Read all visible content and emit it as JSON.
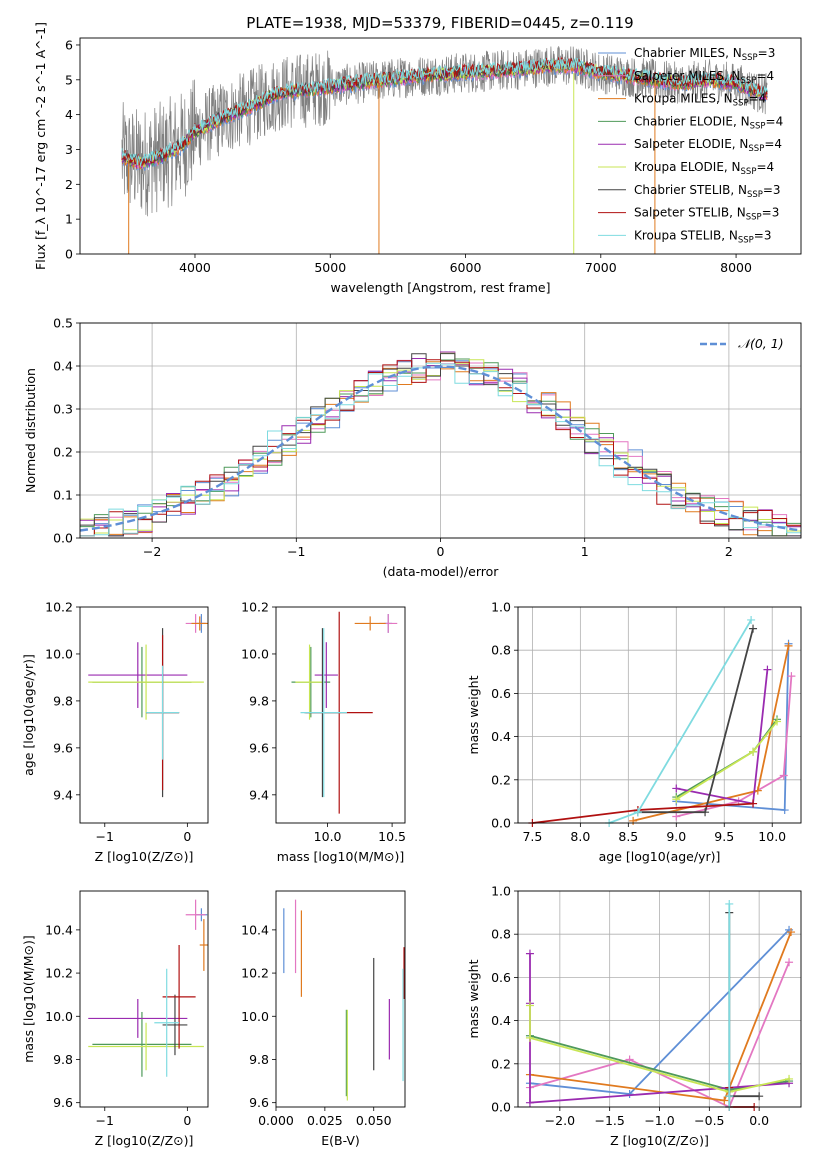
{
  "title": "PLATE=1938, MJD=53379, FIBERID=0445, z=0.119",
  "colors": {
    "Chabrier MILES": "#5f8fd6",
    "Salpeter MILES": "#e377c2",
    "Kroupa MILES": "#e07a1f",
    "Chabrier ELODIE": "#4f9a5a",
    "Salpeter ELODIE": "#9a2bb0",
    "Kroupa ELODIE": "#c8e655",
    "Chabrier STELIB": "#444444",
    "Salpeter STELIB": "#b01010",
    "Kroupa STELIB": "#7fdbe0"
  },
  "chart_data": [
    {
      "type": "line",
      "name": "spectrum",
      "xlabel": "wavelength [Angstrom, rest frame]",
      "ylabel": "Flux [f_λ 10^-17 erg cm^-2 s^-1 A^-1]",
      "xlim": [
        3150,
        8480
      ],
      "ylim": [
        0,
        6.2
      ],
      "xticks": [
        "4000",
        "5000",
        "6000",
        "7000",
        "8000"
      ],
      "yticks": [
        "0",
        "1",
        "2",
        "3",
        "4",
        "5",
        "6"
      ],
      "legend_position": "top-right",
      "legend": [
        {
          "name": "Chabrier MILES",
          "nssp": "3"
        },
        {
          "name": "Salpeter MILES",
          "nssp": "4"
        },
        {
          "name": "Kroupa MILES",
          "nssp": "4"
        },
        {
          "name": "Chabrier ELODIE",
          "nssp": "4"
        },
        {
          "name": "Salpeter ELODIE",
          "nssp": "4"
        },
        {
          "name": "Kroupa ELODIE",
          "nssp": "4"
        },
        {
          "name": "Chabrier STELIB",
          "nssp": "3"
        },
        {
          "name": "Salpeter STELIB",
          "nssp": "3"
        },
        {
          "name": "Kroupa STELIB",
          "nssp": "3"
        }
      ],
      "model_continuum": [
        [
          3450,
          2.8
        ],
        [
          3600,
          2.6
        ],
        [
          3750,
          2.8
        ],
        [
          3900,
          3.1
        ],
        [
          4000,
          3.5
        ],
        [
          4200,
          3.9
        ],
        [
          4400,
          4.2
        ],
        [
          4600,
          4.6
        ],
        [
          4800,
          4.7
        ],
        [
          5000,
          4.8
        ],
        [
          5200,
          4.9
        ],
        [
          5400,
          5.0
        ],
        [
          5600,
          5.1
        ],
        [
          5800,
          5.15
        ],
        [
          6000,
          5.2
        ],
        [
          6200,
          5.25
        ],
        [
          6400,
          5.3
        ],
        [
          6600,
          5.4
        ],
        [
          6800,
          5.4
        ],
        [
          7000,
          5.2
        ],
        [
          7200,
          5.1
        ],
        [
          7400,
          5.0
        ],
        [
          7600,
          4.9
        ],
        [
          7800,
          5.0
        ],
        [
          8000,
          4.9
        ],
        [
          8200,
          4.6
        ]
      ],
      "data_range": [
        3460,
        8230
      ]
    },
    {
      "type": "line",
      "name": "residuals",
      "xlabel": "(data-model)/error",
      "ylabel": "Normed distribution",
      "xlim": [
        -2.5,
        2.5
      ],
      "ylim": [
        0,
        0.5
      ],
      "grid": true,
      "xticks": [
        "−2",
        "−1",
        "0",
        "1",
        "2"
      ],
      "yticks": [
        "0.0",
        "0.1",
        "0.2",
        "0.3",
        "0.4",
        "0.5"
      ],
      "legend": "𝒩(0, 1)",
      "legend_position": "top-right",
      "histogram_bin_width": 0.1
    },
    {
      "type": "scatter",
      "name": "age_vs_Z",
      "xlabel": "Z [log10(Z/Z⊙)]",
      "ylabel": "age  [log10(age/yr)]",
      "xlim": [
        -1.3,
        0.25
      ],
      "ylim": [
        9.28,
        10.2
      ],
      "xticks": [
        "−1",
        "0"
      ],
      "yticks": [
        "9.4",
        "9.6",
        "9.8",
        "10.0",
        "10.2"
      ],
      "points": [
        {
          "model": "Chabrier MILES",
          "x": 0.17,
          "xerr": 0.06,
          "y": 10.13,
          "yerr": 0.04
        },
        {
          "model": "Salpeter MILES",
          "x": 0.1,
          "xerr": 0.12,
          "y": 10.13,
          "yerr": 0.04
        },
        {
          "model": "Kroupa MILES",
          "x": 0.15,
          "xerr": 0.1,
          "y": 10.13,
          "yerr": 0.03
        },
        {
          "model": "Chabrier ELODIE",
          "x": -0.55,
          "xerr": 0.6,
          "y": 9.88,
          "yerr": 0.15
        },
        {
          "model": "Salpeter ELODIE",
          "x": -0.6,
          "xerr": 0.6,
          "y": 9.91,
          "yerr": 0.14
        },
        {
          "model": "Kroupa ELODIE",
          "x": -0.5,
          "xerr": 0.7,
          "y": 9.88,
          "yerr": 0.16
        },
        {
          "model": "Chabrier STELIB",
          "x": -0.3,
          "xerr": 0.2,
          "y": 9.75,
          "yerr": 0.36
        },
        {
          "model": "Salpeter STELIB",
          "x": -0.3,
          "xerr": 0.2,
          "y": 9.75,
          "yerr": 0.33
        },
        {
          "model": "Kroupa STELIB",
          "x": -0.3,
          "xerr": 0.2,
          "y": 9.75,
          "yerr": 0.2
        }
      ]
    },
    {
      "type": "scatter",
      "name": "age_vs_mass",
      "xlabel": "mass [log10(M/M⊙)]",
      "ylabel": "",
      "xlim": [
        9.6,
        10.6
      ],
      "ylim": [
        9.28,
        10.2
      ],
      "xticks": [
        "10.0",
        "10.5"
      ],
      "yticks": [
        "9.4",
        "9.6",
        "9.8",
        "10.0",
        "10.2"
      ],
      "points": [
        {
          "model": "Chabrier MILES",
          "x": 10.47,
          "xerr": 0.03,
          "y": 10.13,
          "yerr": 0.04
        },
        {
          "model": "Salpeter MILES",
          "x": 10.47,
          "xerr": 0.07,
          "y": 10.13,
          "yerr": 0.04
        },
        {
          "model": "Kroupa MILES",
          "x": 10.33,
          "xerr": 0.12,
          "y": 10.13,
          "yerr": 0.03
        },
        {
          "model": "Chabrier ELODIE",
          "x": 9.87,
          "xerr": 0.15,
          "y": 9.88,
          "yerr": 0.15
        },
        {
          "model": "Salpeter ELODIE",
          "x": 9.99,
          "xerr": 0.09,
          "y": 9.91,
          "yerr": 0.14
        },
        {
          "model": "Kroupa ELODIE",
          "x": 9.86,
          "xerr": 0.11,
          "y": 9.88,
          "yerr": 0.16
        },
        {
          "model": "Chabrier STELIB",
          "x": 9.96,
          "xerr": 0.14,
          "y": 9.75,
          "yerr": 0.36
        },
        {
          "model": "Salpeter STELIB",
          "x": 10.09,
          "xerr": 0.26,
          "y": 9.75,
          "yerr": 0.43
        },
        {
          "model": "Kroupa STELIB",
          "x": 9.97,
          "xerr": 0.18,
          "y": 9.75,
          "yerr": 0.36
        }
      ]
    },
    {
      "type": "line",
      "name": "weight_vs_age",
      "xlabel": "age  [log10(age/yr)]",
      "ylabel": "mass weight",
      "xlim": [
        7.35,
        10.3
      ],
      "ylim": [
        0,
        1.0
      ],
      "grid": true,
      "xticks": [
        "7.5",
        "8.0",
        "8.5",
        "9.0",
        "9.5",
        "10.0"
      ],
      "yticks": [
        "0.0",
        "0.2",
        "0.4",
        "0.6",
        "0.8",
        "1.0"
      ],
      "series": [
        {
          "model": "Chabrier MILES",
          "x": [
            9.0,
            10.13,
            10.17
          ],
          "y": [
            0.1,
            0.06,
            0.83
          ]
        },
        {
          "model": "Salpeter MILES",
          "x": [
            9.0,
            9.65,
            10.12,
            10.2
          ],
          "y": [
            0.03,
            0.1,
            0.22,
            0.68
          ]
        },
        {
          "model": "Kroupa MILES",
          "x": [
            8.55,
            9.85,
            10.17
          ],
          "y": [
            0.01,
            0.15,
            0.82
          ]
        },
        {
          "model": "Chabrier ELODIE",
          "x": [
            9.0,
            9.8,
            10.05
          ],
          "y": [
            0.12,
            0.33,
            0.48
          ]
        },
        {
          "model": "Salpeter ELODIE",
          "x": [
            9.0,
            9.8,
            9.95
          ],
          "y": [
            0.16,
            0.09,
            0.71
          ]
        },
        {
          "model": "Kroupa ELODIE",
          "x": [
            9.0,
            9.8,
            10.05
          ],
          "y": [
            0.11,
            0.33,
            0.47
          ]
        },
        {
          "model": "Chabrier STELIB",
          "x": [
            8.6,
            9.3,
            9.8
          ],
          "y": [
            0.05,
            0.05,
            0.9
          ]
        },
        {
          "model": "Salpeter STELIB",
          "x": [
            7.5,
            8.6,
            9.8
          ],
          "y": [
            0.0,
            0.06,
            0.09
          ]
        },
        {
          "model": "Kroupa STELIB",
          "x": [
            8.3,
            8.6,
            9.78
          ],
          "y": [
            0.0,
            0.05,
            0.94
          ]
        }
      ]
    },
    {
      "type": "scatter",
      "name": "mass_vs_Z",
      "xlabel": "Z [log10(Z/Z⊙)]",
      "ylabel": "mass [log10(M/M⊙)]",
      "xlim": [
        -1.3,
        0.25
      ],
      "ylim": [
        9.58,
        10.58
      ],
      "xticks": [
        "−1",
        "0"
      ],
      "yticks": [
        "9.6",
        "9.8",
        "10.0",
        "10.2",
        "10.4"
      ],
      "points": [
        {
          "model": "Chabrier MILES",
          "x": 0.17,
          "xerr": 0.07,
          "y": 10.47,
          "yerr": 0.03
        },
        {
          "model": "Salpeter MILES",
          "x": 0.1,
          "xerr": 0.12,
          "y": 10.47,
          "yerr": 0.07
        },
        {
          "model": "Kroupa MILES",
          "x": 0.2,
          "xerr": 0.05,
          "y": 10.33,
          "yerr": 0.12
        },
        {
          "model": "Chabrier ELODIE",
          "x": -0.55,
          "xerr": 0.6,
          "y": 9.87,
          "yerr": 0.15
        },
        {
          "model": "Salpeter ELODIE",
          "x": -0.6,
          "xerr": 0.6,
          "y": 9.99,
          "yerr": 0.09
        },
        {
          "model": "Kroupa ELODIE",
          "x": -0.5,
          "xerr": 0.7,
          "y": 9.86,
          "yerr": 0.11
        },
        {
          "model": "Chabrier STELIB",
          "x": -0.15,
          "xerr": 0.15,
          "y": 9.96,
          "yerr": 0.14
        },
        {
          "model": "Salpeter STELIB",
          "x": -0.1,
          "xerr": 0.2,
          "y": 10.09,
          "yerr": 0.24
        },
        {
          "model": "Kroupa STELIB",
          "x": -0.25,
          "xerr": 0.15,
          "y": 9.97,
          "yerr": 0.25
        }
      ]
    },
    {
      "type": "scatter",
      "name": "mass_vs_ebv",
      "xlabel": "E(B-V)",
      "ylabel": "",
      "xlim": [
        0.0,
        0.066
      ],
      "ylim": [
        9.58,
        10.58
      ],
      "xticks": [
        "0.000",
        "0.025",
        "0.050"
      ],
      "yticks": [
        "9.6",
        "9.8",
        "10.0",
        "10.2",
        "10.4"
      ],
      "points": [
        {
          "model": "Chabrier MILES",
          "x": 0.004,
          "y": 10.35,
          "yerr": 0.15
        },
        {
          "model": "Salpeter MILES",
          "x": 0.01,
          "y": 10.37,
          "yerr": 0.17
        },
        {
          "model": "Kroupa MILES",
          "x": 0.013,
          "y": 10.29,
          "yerr": 0.2
        },
        {
          "model": "Chabrier ELODIE",
          "x": 0.036,
          "y": 9.83,
          "yerr": 0.2
        },
        {
          "model": "Salpeter ELODIE",
          "x": 0.058,
          "y": 9.94,
          "yerr": 0.14
        },
        {
          "model": "Kroupa ELODIE",
          "x": 0.0365,
          "y": 9.82,
          "yerr": 0.21
        },
        {
          "model": "Chabrier STELIB",
          "x": 0.05,
          "y": 10.01,
          "yerr": 0.26
        },
        {
          "model": "Salpeter STELIB",
          "x": 0.0655,
          "y": 10.2,
          "yerr": 0.12
        },
        {
          "model": "Kroupa STELIB",
          "x": 0.065,
          "y": 9.96,
          "yerr": 0.26
        }
      ]
    },
    {
      "type": "line",
      "name": "weight_vs_Z",
      "xlabel": "Z [log10(Z/Z⊙)]",
      "ylabel": "mass weight",
      "xlim": [
        -2.42,
        0.42
      ],
      "ylim": [
        0,
        1.0
      ],
      "grid": true,
      "xticks": [
        "−2.0",
        "−1.5",
        "−1.0",
        "−0.5",
        "0.0"
      ],
      "yticks": [
        "0.0",
        "0.2",
        "0.4",
        "0.6",
        "0.8",
        "1.0"
      ],
      "series": [
        {
          "model": "Chabrier MILES",
          "x": [
            -2.3,
            -1.3,
            0.3
          ],
          "y": [
            0.11,
            0.06,
            0.82
          ]
        },
        {
          "model": "Salpeter MILES",
          "x": [
            -2.3,
            -1.3,
            -0.3,
            0.3
          ],
          "y": [
            0.09,
            0.22,
            0.0,
            0.67
          ]
        },
        {
          "model": "Kroupa MILES",
          "x": [
            -2.3,
            -0.35,
            0.32
          ],
          "y": [
            0.15,
            0.03,
            0.81
          ]
        },
        {
          "model": "Chabrier ELODIE",
          "x": [
            -2.3,
            -0.3,
            0.3
          ],
          "y": [
            0.33,
            0.08,
            0.12
          ]
        },
        {
          "model": "Salpeter ELODIE",
          "x": [
            -2.3,
            -2.3,
            -2.3,
            0.3
          ],
          "y": [
            0.71,
            0.48,
            0.02,
            0.11
          ]
        },
        {
          "model": "Kroupa ELODIE",
          "x": [
            -2.3,
            -2.3,
            -0.3,
            0.3
          ],
          "y": [
            0.47,
            0.32,
            0.07,
            0.13
          ]
        },
        {
          "model": "Chabrier STELIB",
          "x": [
            -0.3,
            -0.3,
            0.0
          ],
          "y": [
            0.9,
            0.05,
            0.05
          ]
        },
        {
          "model": "Salpeter STELIB",
          "x": [
            -0.3,
            -0.3,
            -0.05
          ],
          "y": [
            0.09,
            0.0,
            0.0
          ]
        },
        {
          "model": "Kroupa STELIB",
          "x": [
            -0.3,
            -0.3,
            -0.3
          ],
          "y": [
            0.94,
            0.05,
            0.0
          ]
        }
      ]
    }
  ]
}
